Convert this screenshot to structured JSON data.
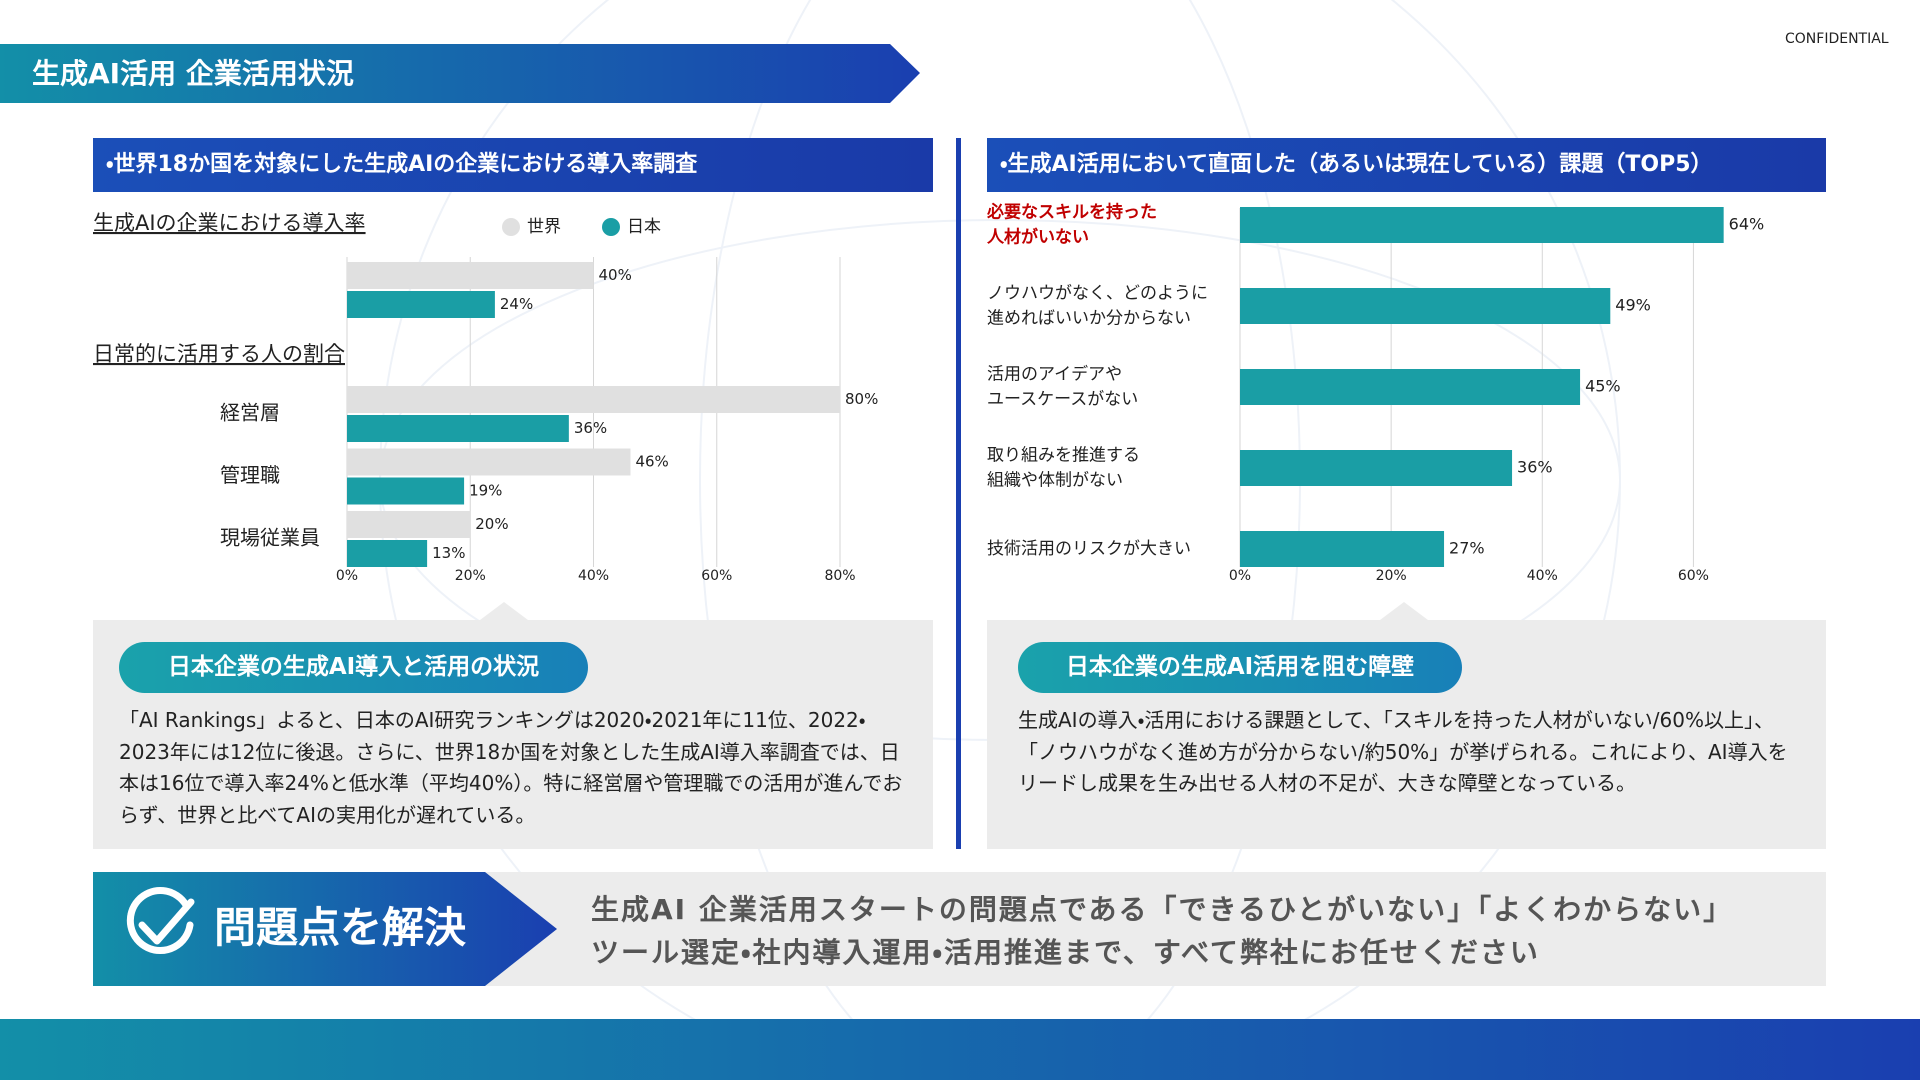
{
  "confidential": "CONFIDENTIAL",
  "header": {
    "title": "生成AI活用 企業活用状況"
  },
  "left": {
    "heading": "・世界18か国を対象にした生成AIの企業における導入率調査",
    "callout_title": "日本企業の生成AI導入と活用の状況",
    "callout_text": "「AI Rankings」よると、日本のAI研究ランキングは2020・2021年に11位、2022・2023年には12位に後退。さらに、世界18か国を対象とした生成AI導入率調査では、日本は16位で導入率24%と低水準（平均40%）。特に経営層や管理職での活用が進んでおらず、世界と比べてAIの実用化が遅れている。"
  },
  "right": {
    "heading": "・生成AI活用において直面した（あるいは現在している）課題（TOP5）",
    "callout_title": "日本企業の生成AI活用を阻む障壁",
    "callout_text": "生成AIの導入・活用における課題として、「スキルを持った人材がいない/60%以上」、「ノウハウがなく進め方が分からない/約50%」が挙げられる。これにより、AI導入をリードし成果を生み出せる人材の不足が、大きな障壁となっている。"
  },
  "footer": {
    "badge": "問題点を解決",
    "lines": [
      "生成AI 企業活用スタートの問題点である「できるひとがいない」「よくわからない」",
      "ツール選定・社内導入運用・活用推進まで、すべて弊社にお任せください"
    ]
  },
  "chart_data": [
    {
      "type": "barh",
      "section_titles": [
        "生成AIの企業における導入率",
        "日常的に活用する人の割合"
      ],
      "categories": [
        null,
        "経営層",
        "管理職",
        "現場従業員"
      ],
      "series": [
        {
          "name": "世界",
          "color": "#e0e0e0",
          "values": [
            40,
            80,
            46,
            20
          ],
          "value_labels": [
            "40%",
            "80%",
            "46%",
            "20%"
          ]
        },
        {
          "name": "日本",
          "color": "#1a9ea5",
          "values": [
            24,
            36,
            19,
            13
          ],
          "value_labels": [
            "24%",
            "36%",
            "19%",
            "13%"
          ]
        }
      ],
      "xlim": [
        0,
        80
      ],
      "xticks": [
        {
          "value": 0,
          "label": "0%"
        },
        {
          "value": 20,
          "label": "20%"
        },
        {
          "value": 40,
          "label": "40%"
        },
        {
          "value": 60,
          "label": "60%"
        },
        {
          "value": 80,
          "label": "80%"
        }
      ],
      "grid": true
    },
    {
      "type": "barh",
      "categories": [
        [
          "必要なスキルを持った",
          "人材がいない"
        ],
        [
          "ノウハウがなく、どのように",
          "進めればいいか分からない"
        ],
        [
          "活用のアイデアや",
          "ユースケースがない"
        ],
        [
          "取り組みを推進する",
          "組織や体制がない"
        ],
        [
          "技術活用のリスクが大きい"
        ]
      ],
      "values": [
        64,
        49,
        45,
        36,
        27
      ],
      "value_labels": [
        "64%",
        "49%",
        "45%",
        "36%",
        "27%"
      ],
      "color": "#1a9ea5",
      "highlight": {
        "index": 0,
        "color": "#c00000"
      },
      "xlim": [
        0,
        70
      ],
      "xticks": [
        {
          "value": 0,
          "label": "0%"
        },
        {
          "value": 20,
          "label": "20%"
        },
        {
          "value": 40,
          "label": "40%"
        },
        {
          "value": 60,
          "label": "60%"
        }
      ],
      "grid": true
    }
  ]
}
